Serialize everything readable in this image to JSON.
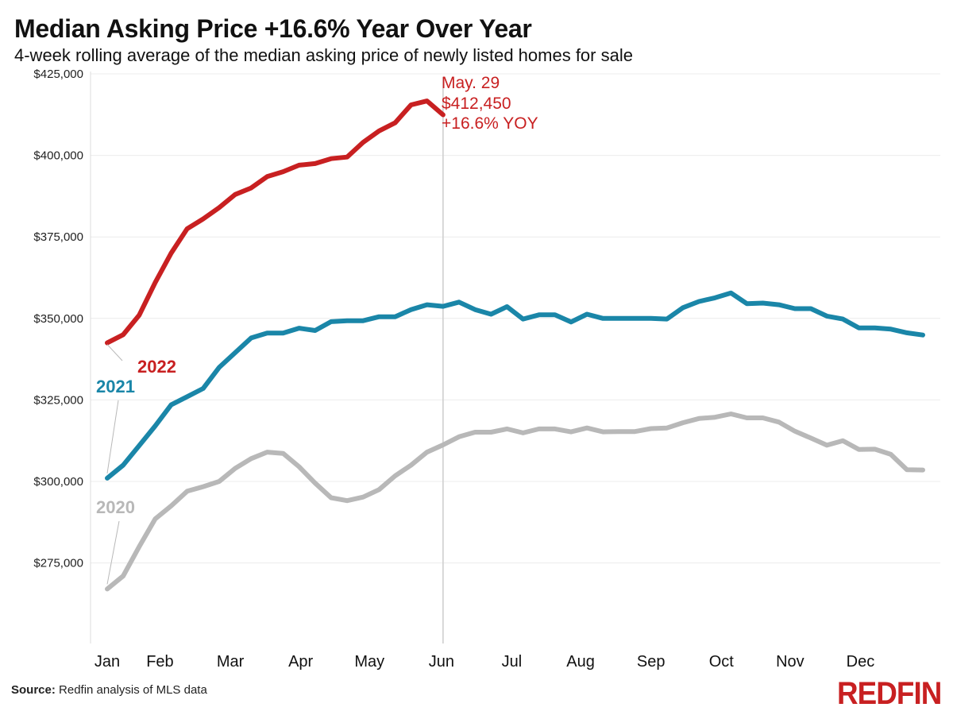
{
  "header": {
    "title": "Median Asking Price +16.6% Year Over Year",
    "subtitle": "4-week rolling average of the median asking price of newly listed homes for sale"
  },
  "footer": {
    "source_label": "Source:",
    "source_text": "Redfin analysis of MLS data",
    "logo": "REDFIN"
  },
  "colors": {
    "2022": "#c82021",
    "2021": "#1a86a8",
    "2020": "#b8b8b8",
    "grid": "#ececec",
    "vline": "#cccccc"
  },
  "chart_data": {
    "type": "line",
    "title": "Median Asking Price +16.6% Year Over Year",
    "subtitle": "4-week rolling average of the median asking price of newly listed homes for sale",
    "xlabel": "",
    "ylabel": "",
    "x_unit": "week of year",
    "xlim": [
      1,
      52
    ],
    "ylim": [
      250000,
      427000
    ],
    "y_ticks": [
      275000,
      300000,
      325000,
      350000,
      375000,
      400000,
      425000
    ],
    "y_tick_labels": [
      "$275,000",
      "$300,000",
      "$325,000",
      "$350,000",
      "$375,000",
      "$400,000",
      "$425,000"
    ],
    "x_tick_labels": [
      "Jan",
      "Feb",
      "Mar",
      "Apr",
      "May",
      "Jun",
      "Jul",
      "Aug",
      "Sep",
      "Oct",
      "Nov",
      "Dec"
    ],
    "x_tick_weeks": [
      1,
      4.3,
      8.7,
      13.1,
      17.4,
      21.9,
      26.3,
      30.6,
      35,
      39.4,
      43.7,
      48.1
    ],
    "grid": true,
    "series": [
      {
        "name": "2022",
        "values": [
          342500,
          345000,
          351000,
          361000,
          370000,
          377500,
          380500,
          384000,
          388000,
          390000,
          393500,
          395000,
          397000,
          397500,
          399000,
          399500,
          404000,
          407500,
          410000,
          415500,
          416700,
          412450
        ]
      },
      {
        "name": "2021",
        "values": [
          301000,
          305000,
          311000,
          317000,
          323500,
          326000,
          328500,
          335000,
          339500,
          344000,
          345500,
          345500,
          347000,
          346300,
          349000,
          349300,
          349300,
          350500,
          350500,
          352700,
          354200,
          353700,
          355000,
          352700,
          351300,
          353600,
          349800,
          351100,
          351100,
          348900,
          351300,
          350000,
          350000,
          350000,
          350000,
          349800,
          353300,
          355200,
          356300,
          357800,
          354500,
          354700,
          354200,
          353000,
          353000,
          350700,
          349800,
          347100,
          347100,
          346700,
          345600,
          344900
        ]
      },
      {
        "name": "2020",
        "values": [
          267000,
          271000,
          280000,
          288500,
          292500,
          297000,
          298400,
          300000,
          304000,
          307000,
          309000,
          308600,
          304500,
          299500,
          295000,
          294100,
          295200,
          297500,
          301700,
          305000,
          309000,
          311200,
          313700,
          315100,
          315100,
          316100,
          314900,
          316100,
          316100,
          315200,
          316400,
          315200,
          315300,
          315300,
          316200,
          316400,
          318000,
          319300,
          319700,
          320700,
          319500,
          319500,
          318200,
          315400,
          313300,
          311100,
          312500,
          309800,
          309900,
          308300,
          303600,
          303500
        ]
      }
    ],
    "annotation": {
      "date": "May. 29",
      "value": "$412,450",
      "change": "+16.6% YOY",
      "x_week": 22
    }
  }
}
